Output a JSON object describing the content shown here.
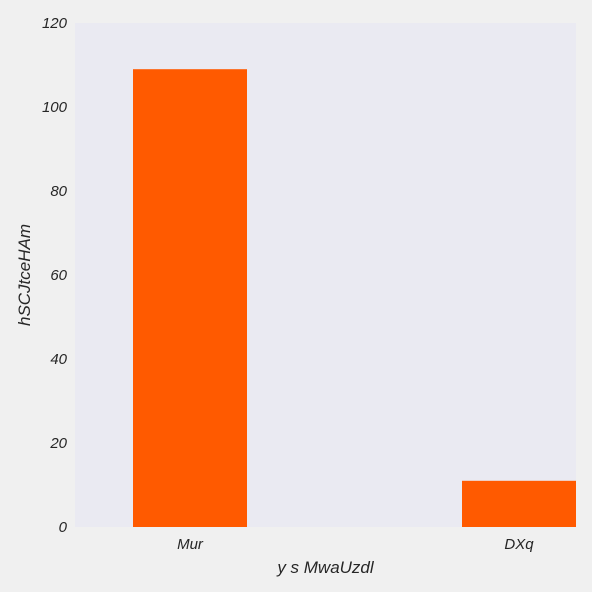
{
  "chart_data": {
    "type": "bar",
    "title": "",
    "xlabel": "y s MwaUzdl",
    "ylabel": "hSCJtceHAm",
    "categories": [
      "Mur",
      "DXq"
    ],
    "values": [
      109,
      11
    ],
    "ylim": [
      0,
      120
    ],
    "yticks": [
      "0",
      "20",
      "40",
      "60",
      "80",
      "100",
      "120"
    ],
    "ytick_values": [
      0,
      20,
      40,
      60,
      80,
      100,
      120
    ],
    "grid": false,
    "colors": {
      "bar": "#ff5a00",
      "plot_bg": "#eaeaf2",
      "page_bg": "#f0f0f0"
    }
  }
}
